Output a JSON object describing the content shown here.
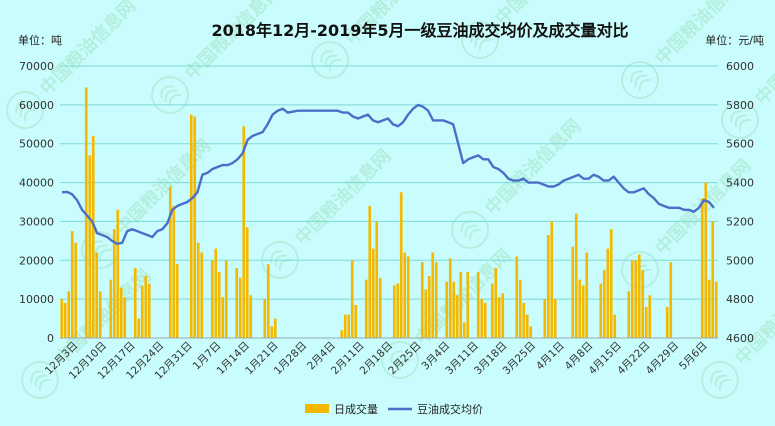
{
  "chart_data": {
    "type": "bar",
    "title": "2018年12月-2019年5月一级豆油成交均价及成交量对比",
    "left_unit": "单位：吨",
    "right_unit": "单位：元/吨",
    "y_left": {
      "min": 0,
      "max": 70000,
      "ticks": [
        "0",
        "10000",
        "20000",
        "30000",
        "40000",
        "50000",
        "60000",
        "70000"
      ]
    },
    "y_right": {
      "min": 4600,
      "max": 6000,
      "ticks": [
        "4600",
        "4800",
        "5000",
        "5200",
        "5400",
        "5600",
        "5800",
        "6000"
      ]
    },
    "x_labels": [
      "12月3日",
      "12月10日",
      "12月17日",
      "12月24日",
      "12月31日",
      "1月7日",
      "1月14日",
      "1月21日",
      "1月28日",
      "2月4日",
      "2月11日",
      "2月18日",
      "2月25日",
      "3月4日",
      "3月11日",
      "3月18日",
      "3月25日",
      "4月1日",
      "4月8日",
      "4月15日",
      "4月22日",
      "4月29日",
      "5月6日"
    ],
    "series": [
      {
        "name": "日成交量",
        "kind": "bar",
        "axis": "left",
        "color": "#f5b800",
        "values": [
          10000,
          9000,
          12000,
          27500,
          24500,
          0,
          0,
          64500,
          47000,
          52000,
          22000,
          12000,
          0,
          0,
          15000,
          28000,
          33000,
          13000,
          10500,
          0,
          0,
          18000,
          5000,
          13500,
          16000,
          14000,
          0,
          0,
          0,
          0,
          0,
          39000,
          34000,
          19000,
          0,
          0,
          0,
          57500,
          57000,
          24500,
          22000,
          0,
          0,
          20000,
          23000,
          17000,
          10500,
          20000,
          0,
          0,
          18000,
          15500,
          54500,
          28500,
          11000,
          0,
          0,
          0,
          10000,
          19000,
          3000,
          5000,
          0,
          0,
          0,
          0,
          0,
          0,
          0,
          0,
          0,
          0,
          0,
          0,
          0,
          0,
          0,
          0,
          0,
          0,
          2000,
          6000,
          6000,
          20000,
          8500,
          0,
          0,
          15000,
          34000,
          23000,
          30000,
          15500,
          0,
          0,
          0,
          13500,
          14000,
          37500,
          22000,
          21000,
          0,
          0,
          0,
          19500,
          12500,
          16000,
          22000,
          19500,
          0,
          0,
          14500,
          20500,
          14500,
          11000,
          17000,
          4000,
          17000,
          0,
          0,
          17000,
          10000,
          9000,
          0,
          14000,
          18000,
          10500,
          11500,
          0,
          0,
          0,
          21000,
          15000,
          9000,
          6000,
          3000,
          0,
          0,
          0,
          10000,
          26500,
          30000,
          10000,
          0,
          0,
          0,
          0,
          23500,
          32000,
          15000,
          13500,
          22000,
          0,
          0,
          0,
          14000,
          17500,
          23000,
          28000,
          6000,
          0,
          0,
          0,
          12000,
          20000,
          20000,
          21500,
          17500,
          8000,
          11000,
          0,
          0,
          0,
          0,
          8000,
          19500,
          0,
          0,
          0,
          0,
          0,
          0,
          0,
          0,
          36000,
          40000,
          15000,
          30000,
          14500
        ]
      },
      {
        "name": "豆油成交均价",
        "kind": "line",
        "axis": "right",
        "color": "#4a6fc9",
        "values": [
          5350,
          5352,
          5340,
          5310,
          5260,
          5230,
          5200,
          5140,
          5130,
          5120,
          5100,
          5085,
          5090,
          5150,
          5160,
          5150,
          5140,
          5130,
          5120,
          5150,
          5160,
          5190,
          5260,
          5280,
          5290,
          5300,
          5320,
          5350,
          5440,
          5450,
          5470,
          5480,
          5490,
          5490,
          5500,
          5520,
          5550,
          5620,
          5640,
          5650,
          5660,
          5700,
          5750,
          5770,
          5780,
          5760,
          5765,
          5770,
          5770,
          5770,
          5770,
          5770,
          5770,
          5770,
          5770,
          5770,
          5760,
          5760,
          5740,
          5730,
          5740,
          5750,
          5720,
          5710,
          5720,
          5730,
          5700,
          5690,
          5710,
          5750,
          5780,
          5800,
          5790,
          5770,
          5720,
          5720,
          5720,
          5710,
          5700,
          5600,
          5500,
          5520,
          5530,
          5540,
          5520,
          5520,
          5480,
          5470,
          5450,
          5420,
          5410,
          5410,
          5420,
          5400,
          5400,
          5400,
          5390,
          5380,
          5380,
          5390,
          5410,
          5420,
          5430,
          5440,
          5420,
          5420,
          5440,
          5430,
          5410,
          5410,
          5430,
          5400,
          5370,
          5350,
          5350,
          5360,
          5370,
          5340,
          5320,
          5290,
          5280,
          5270,
          5270,
          5270,
          5260,
          5260,
          5250,
          5270,
          5310,
          5300,
          5270
        ]
      }
    ],
    "legend": {
      "position": "bottom"
    }
  },
  "watermark": {
    "text": "中国粮油信息网",
    "sub": "WWW.ChinaGrain.CN",
    "color": "#8fd6a8"
  }
}
